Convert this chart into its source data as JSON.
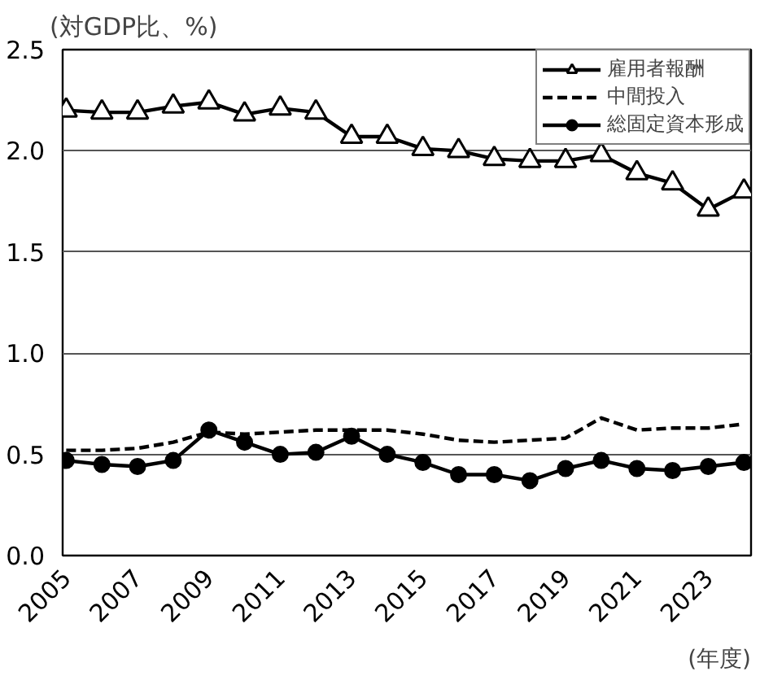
{
  "chart_data": {
    "type": "line",
    "ylabel": "(対GDP比、%)",
    "xlabel": "(年度)",
    "x": [
      2005,
      2006,
      2007,
      2008,
      2009,
      2010,
      2011,
      2012,
      2013,
      2014,
      2015,
      2016,
      2017,
      2018,
      2019,
      2020,
      2021,
      2022,
      2023,
      2024
    ],
    "series": [
      {
        "name": "雇用者報酬",
        "color": "#000000",
        "marker": "triangle",
        "line_style": "solid",
        "values": [
          2.2,
          2.19,
          2.19,
          2.22,
          2.24,
          2.18,
          2.21,
          2.19,
          2.07,
          2.07,
          2.01,
          2.0,
          1.96,
          1.95,
          1.95,
          1.98,
          1.89,
          1.84,
          1.71,
          1.8
        ]
      },
      {
        "name": "中間投入",
        "color": "#000000",
        "marker": "none",
        "line_style": "dashed",
        "values": [
          0.52,
          0.52,
          0.53,
          0.56,
          0.61,
          0.6,
          0.61,
          0.62,
          0.62,
          0.62,
          0.6,
          0.57,
          0.56,
          0.57,
          0.58,
          0.68,
          0.62,
          0.63,
          0.63,
          0.65
        ]
      },
      {
        "name": "総固定資本形成",
        "color": "#000000",
        "marker": "circle",
        "line_style": "solid",
        "values": [
          0.47,
          0.45,
          0.44,
          0.47,
          0.62,
          0.56,
          0.5,
          0.51,
          0.59,
          0.5,
          0.46,
          0.4,
          0.4,
          0.37,
          0.43,
          0.47,
          0.43,
          0.42,
          0.44,
          0.46
        ]
      }
    ],
    "xlim": [
      2004.9,
      2024.2
    ],
    "xticks": [
      2005,
      2007,
      2009,
      2011,
      2013,
      2015,
      2017,
      2019,
      2021,
      2023
    ],
    "ylim": [
      0,
      2.5
    ],
    "yticks": [
      {
        "value": 0,
        "label": "0.0"
      },
      {
        "value": 0.5,
        "label": "0.5"
      },
      {
        "value": 1,
        "label": "1.0"
      },
      {
        "value": 1.5,
        "label": "1.5"
      },
      {
        "value": 2,
        "label": "2.0"
      },
      {
        "value": 2.5,
        "label": "2.5"
      }
    ],
    "grid": "y",
    "legend": "top right"
  }
}
